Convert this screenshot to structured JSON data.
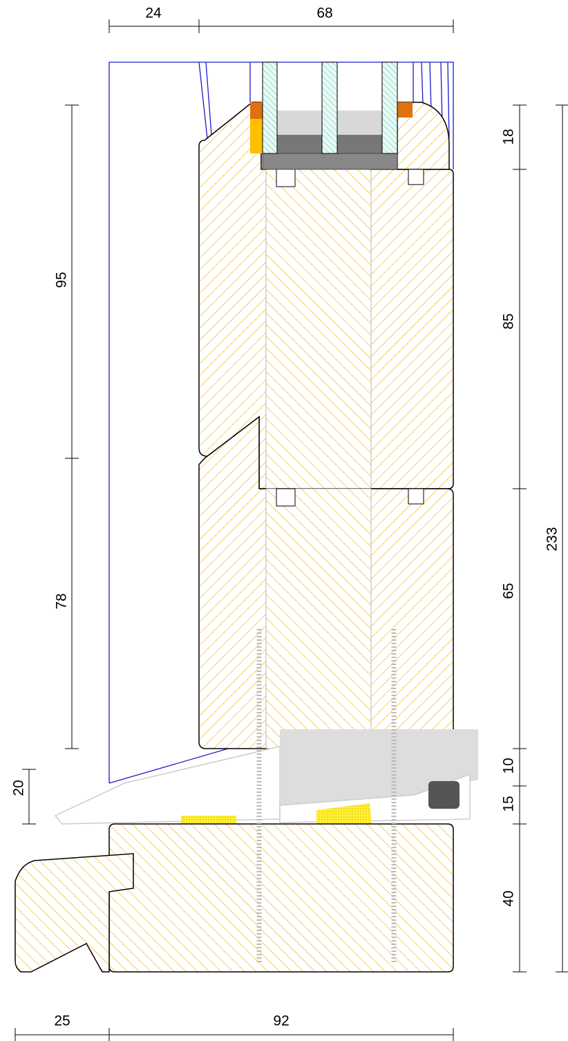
{
  "dimensions": {
    "top": [
      "24",
      "68"
    ],
    "left": [
      "95",
      "78",
      "20"
    ],
    "right": [
      "18",
      "85",
      "65",
      "10",
      "15",
      "40"
    ],
    "overall": "233",
    "bottom": [
      "25",
      "92"
    ]
  }
}
